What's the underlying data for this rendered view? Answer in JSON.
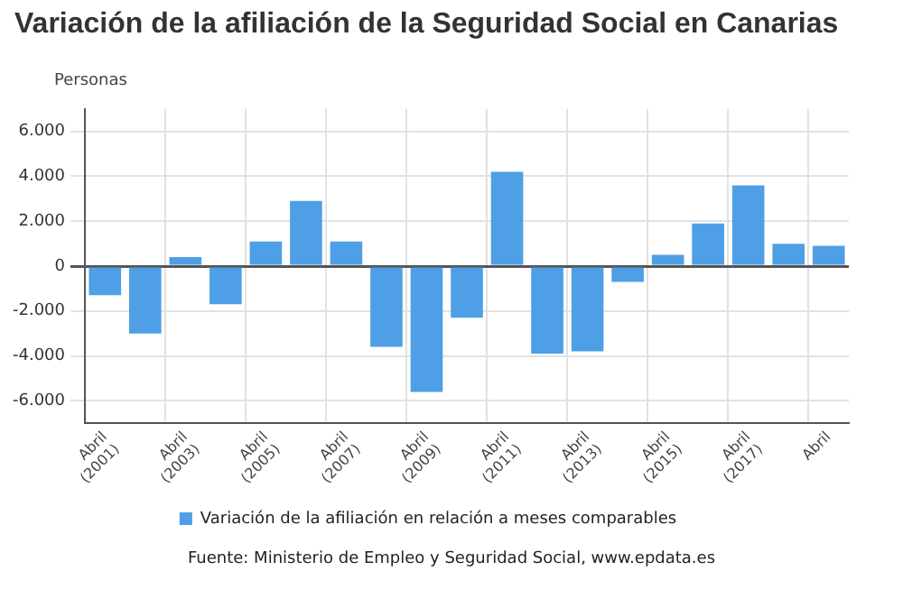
{
  "chart_data": {
    "type": "bar",
    "title": "Variación de la afiliación de la Seguridad Social en Canarias",
    "ylabel": "Personas",
    "categories": [
      "Abril (2001)",
      null,
      "Abril (2003)",
      null,
      "Abril (2005)",
      null,
      "Abril (2007)",
      null,
      "Abril (2009)",
      null,
      "Abril (2011)",
      null,
      "Abril (2013)",
      null,
      "Abril (2015)",
      null,
      "Abril (2017)",
      null,
      "Abril"
    ],
    "series": [
      {
        "name": "Variación de la afiliación en relación a meses comparables",
        "color": "#4e9fe5",
        "values": [
          -1300,
          -3000,
          400,
          -1700,
          1100,
          2900,
          1100,
          -3600,
          -5600,
          -2300,
          4200,
          -3900,
          -3800,
          -700,
          500,
          1900,
          3600,
          1000,
          900
        ]
      }
    ],
    "ylim": [
      -7000,
      7000
    ],
    "yticks": [
      {
        "value": -6000,
        "label": "-6.000"
      },
      {
        "value": -4000,
        "label": "-4.000"
      },
      {
        "value": -2000,
        "label": "-2.000"
      },
      0,
      {
        "value": 2000,
        "label": "2.000"
      },
      {
        "value": 4000,
        "label": "4.000"
      },
      {
        "value": 6000,
        "label": "6.000"
      }
    ],
    "grid": true,
    "legend": "bottom",
    "annotations": [
      "Fuente: Ministerio de Empleo y Seguridad Social, www.epdata.es"
    ]
  }
}
